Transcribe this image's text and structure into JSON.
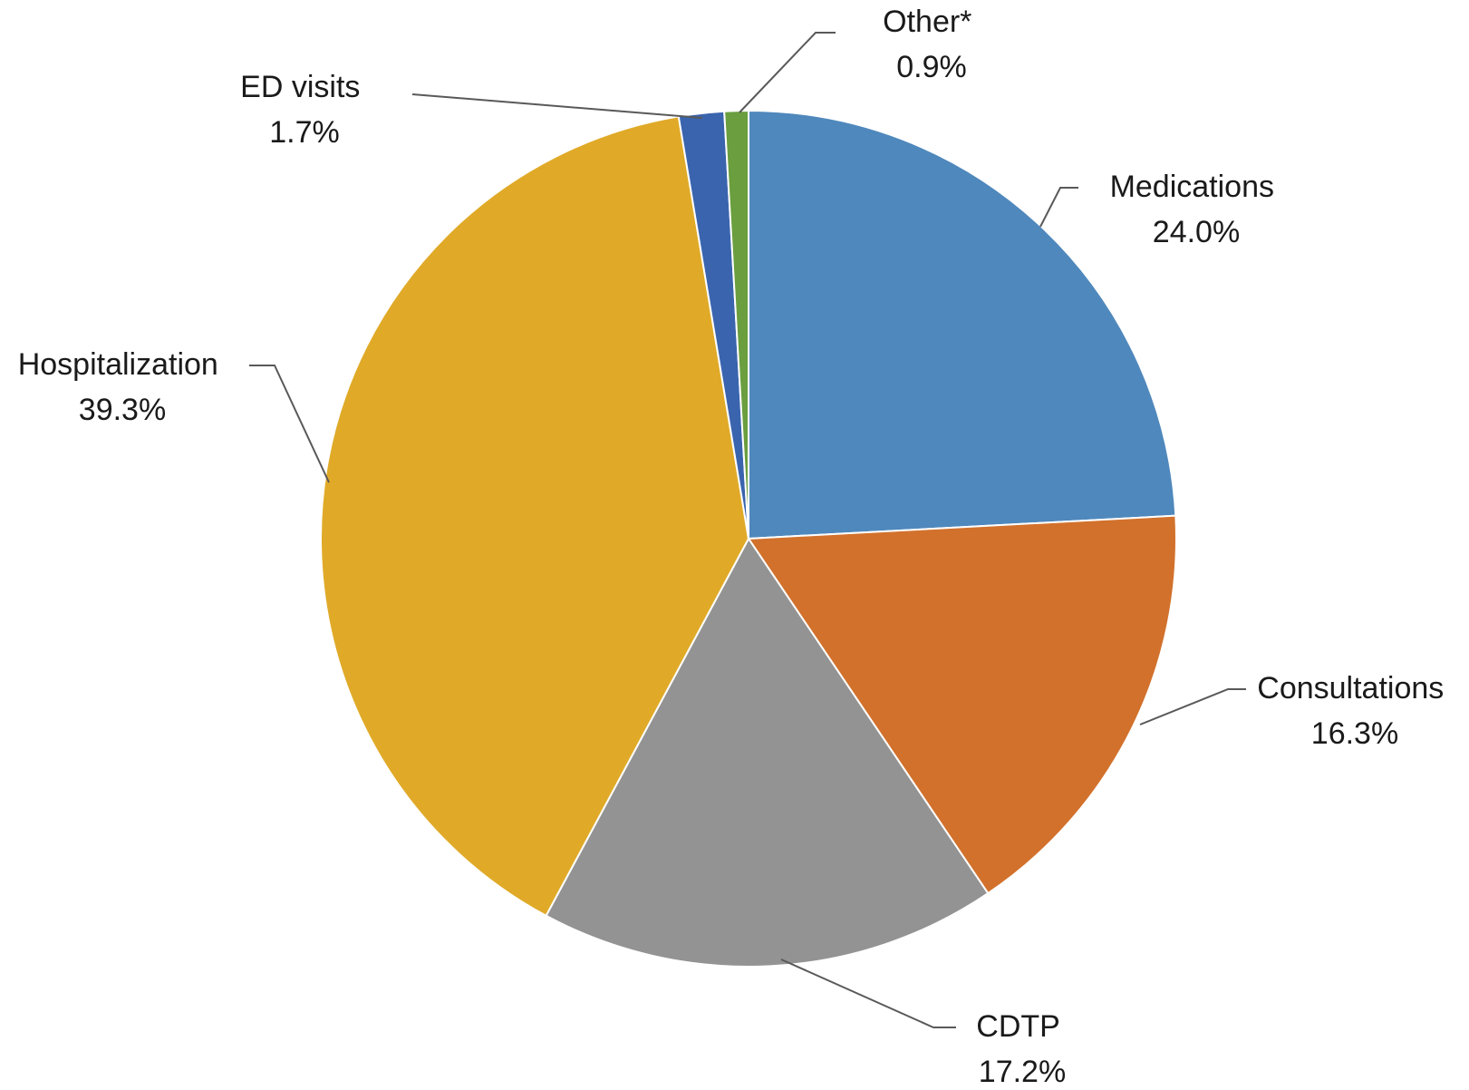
{
  "chart_data": {
    "type": "pie",
    "start_angle_deg": 0,
    "direction": "clockwise",
    "legend": "none",
    "slices": [
      {
        "name": "Medications",
        "value": 24.0,
        "label": "24.0%",
        "color": "#4F88BC"
      },
      {
        "name": "Consultations",
        "value": 16.3,
        "label": "16.3%",
        "color": "#D2712C"
      },
      {
        "name": "CDTP",
        "value": 17.2,
        "label": "17.2%",
        "color": "#939393"
      },
      {
        "name": "Hospitalization",
        "value": 39.3,
        "label": "39.3%",
        "color": "#E0AA28"
      },
      {
        "name": "ED visits",
        "value": 1.7,
        "label": "1.7%",
        "color": "#3A64AD"
      },
      {
        "name": "Other*",
        "value": 0.9,
        "label": "0.9%",
        "color": "#6A9E3F"
      }
    ]
  }
}
